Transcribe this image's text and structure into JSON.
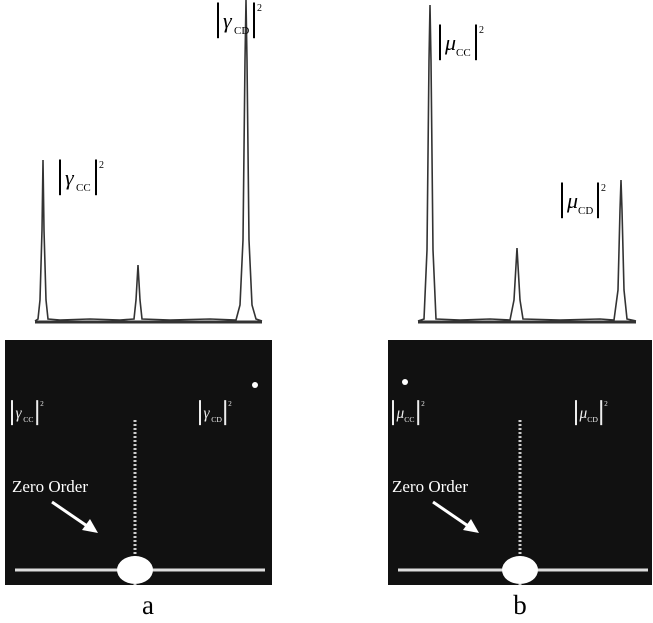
{
  "panels": [
    {
      "caption": "a",
      "profile_labels": [
        {
          "symbol": "γ",
          "subscript": "CC",
          "exponent": "2"
        },
        {
          "symbol": "γ",
          "subscript": "CD",
          "exponent": "2"
        }
      ],
      "image_labels": [
        {
          "symbol": "γ",
          "subscript": "CC",
          "exponent": "2"
        },
        {
          "symbol": "γ",
          "subscript": "CD",
          "exponent": "2"
        }
      ],
      "zero_order": "Zero Order"
    },
    {
      "caption": "b",
      "profile_labels": [
        {
          "symbol": "μ",
          "subscript": "CC",
          "exponent": "2"
        },
        {
          "symbol": "μ",
          "subscript": "CD",
          "exponent": "2"
        }
      ],
      "image_labels": [
        {
          "symbol": "μ",
          "subscript": "CC",
          "exponent": "2"
        },
        {
          "symbol": "μ",
          "subscript": "CD",
          "exponent": "2"
        }
      ],
      "zero_order": "Zero Order"
    }
  ]
}
